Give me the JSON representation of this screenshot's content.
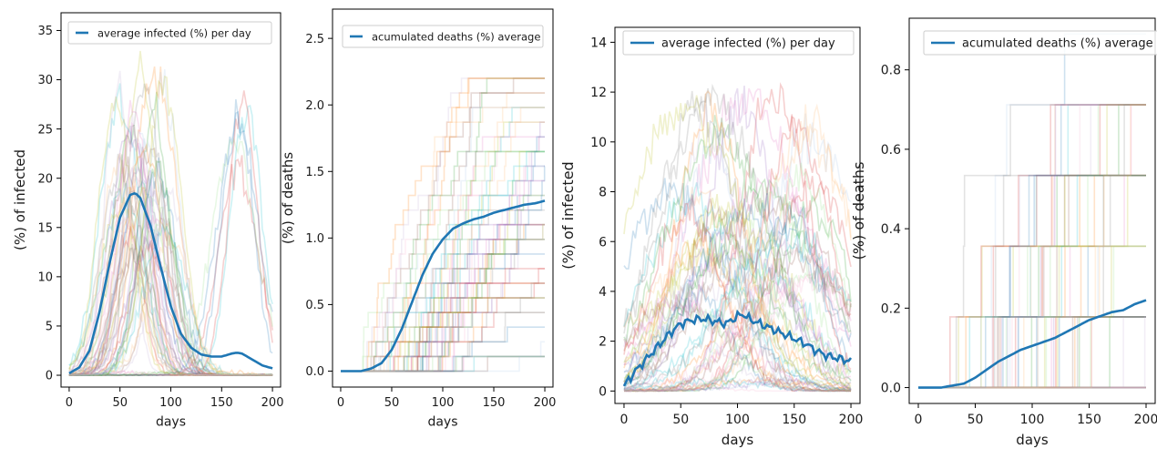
{
  "figure": {
    "panels": 4
  },
  "chart_data": [
    {
      "type": "line",
      "xlabel": "days",
      "ylabel": "(%) of infected",
      "xlim": [
        -8,
        208
      ],
      "ylim": [
        -1.2,
        36.8
      ],
      "xticks": [
        0,
        50,
        100,
        150,
        200
      ],
      "yticks": [
        0,
        5,
        10,
        15,
        20,
        25,
        30,
        35
      ],
      "grid": false,
      "legend": {
        "position": "top-left",
        "label": "average infected (%) per day"
      },
      "average_color": "#1f77b4",
      "background_runs": {
        "count": 60,
        "description_hidden": true
      },
      "series": [
        {
          "name": "average infected (%) per day",
          "x": [
            0,
            10,
            20,
            30,
            40,
            50,
            60,
            65,
            70,
            80,
            90,
            100,
            110,
            120,
            130,
            140,
            150,
            160,
            165,
            170,
            180,
            190,
            200
          ],
          "values": [
            0.2,
            0.8,
            2.5,
            6.5,
            11.5,
            16.0,
            18.3,
            18.5,
            18.0,
            15.2,
            11.0,
            7.0,
            4.2,
            2.8,
            2.1,
            1.9,
            1.9,
            2.2,
            2.3,
            2.2,
            1.6,
            1.0,
            0.7
          ]
        }
      ]
    },
    {
      "type": "line",
      "xlabel": "days",
      "ylabel": "(%) of deaths",
      "xlim": [
        -8,
        208
      ],
      "ylim": [
        -0.12,
        2.72
      ],
      "xticks": [
        0,
        50,
        100,
        150,
        200
      ],
      "yticks": [
        0.0,
        0.5,
        1.0,
        1.5,
        2.0,
        2.5
      ],
      "grid": false,
      "legend": {
        "position": "top-center",
        "label": "acumulated deaths (%) average"
      },
      "average_color": "#1f77b4",
      "series": [
        {
          "name": "acumulated deaths (%) average",
          "x": [
            0,
            20,
            30,
            40,
            50,
            60,
            70,
            80,
            90,
            100,
            110,
            120,
            130,
            140,
            150,
            160,
            170,
            180,
            190,
            200
          ],
          "values": [
            0.0,
            0.0,
            0.02,
            0.06,
            0.16,
            0.32,
            0.52,
            0.72,
            0.88,
            0.99,
            1.07,
            1.11,
            1.14,
            1.16,
            1.19,
            1.21,
            1.23,
            1.25,
            1.26,
            1.28
          ]
        }
      ]
    },
    {
      "type": "line",
      "xlabel": "days",
      "ylabel": "(%) of infected",
      "xlim": [
        -8,
        208
      ],
      "ylim": [
        -0.5,
        14.6
      ],
      "xticks": [
        0,
        50,
        100,
        150,
        200
      ],
      "yticks": [
        0,
        2,
        4,
        6,
        8,
        10,
        12,
        14
      ],
      "grid": false,
      "legend": {
        "position": "top-left",
        "label": "average infected (%) per day"
      },
      "average_color": "#1f77b4",
      "series": [
        {
          "name": "average infected (%) per day",
          "x": [
            0,
            10,
            20,
            30,
            40,
            50,
            60,
            70,
            80,
            90,
            100,
            105,
            110,
            120,
            130,
            140,
            150,
            160,
            170,
            180,
            190,
            200
          ],
          "values": [
            0.2,
            0.8,
            1.3,
            1.8,
            2.3,
            2.7,
            2.85,
            2.9,
            2.8,
            2.7,
            3.0,
            3.1,
            2.9,
            2.7,
            2.5,
            2.3,
            2.1,
            1.9,
            1.6,
            1.4,
            1.3,
            1.2
          ]
        }
      ]
    },
    {
      "type": "line",
      "xlabel": "days",
      "ylabel": "(%) of deaths",
      "xlim": [
        -8,
        208
      ],
      "ylim": [
        -0.04,
        0.93
      ],
      "xticks": [
        0,
        50,
        100,
        150,
        200
      ],
      "yticks": [
        0.0,
        0.2,
        0.4,
        0.6,
        0.8
      ],
      "grid": false,
      "legend": {
        "position": "top-center",
        "label": "acumulated deaths (%) average"
      },
      "average_color": "#1f77b4",
      "series": [
        {
          "name": "acumulated deaths (%) average",
          "x": [
            0,
            20,
            30,
            40,
            50,
            60,
            70,
            80,
            90,
            100,
            110,
            120,
            130,
            140,
            150,
            160,
            170,
            180,
            190,
            200
          ],
          "values": [
            0.0,
            0.0,
            0.005,
            0.01,
            0.025,
            0.045,
            0.065,
            0.08,
            0.095,
            0.105,
            0.115,
            0.125,
            0.14,
            0.155,
            0.17,
            0.18,
            0.19,
            0.195,
            0.21,
            0.22
          ]
        }
      ]
    }
  ]
}
